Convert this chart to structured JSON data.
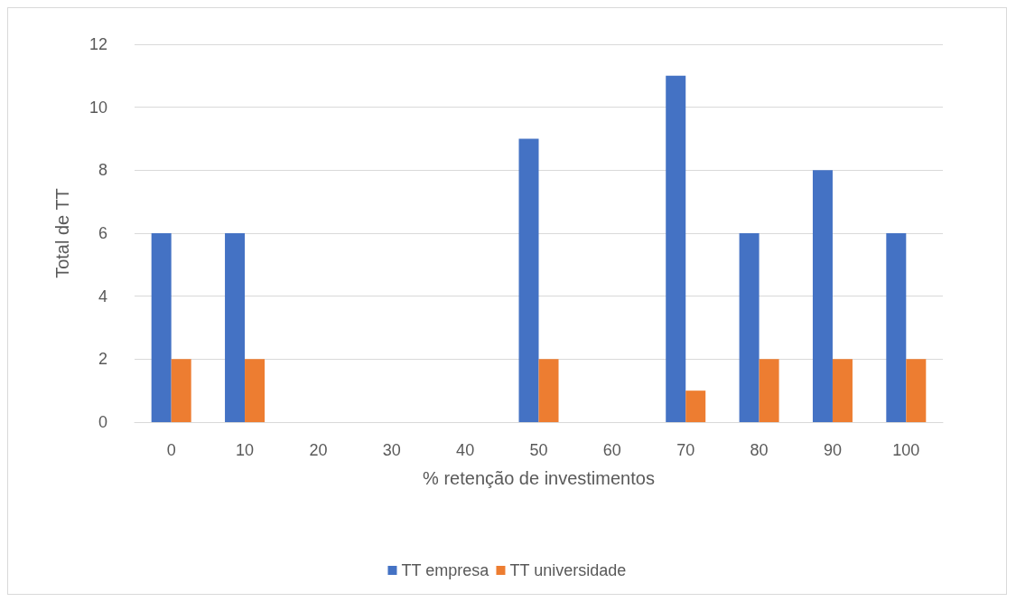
{
  "chart_data": {
    "type": "bar",
    "xlabel": "% retenção de investimentos",
    "ylabel": "Total de TT",
    "categories": [
      "0",
      "10",
      "20",
      "30",
      "40",
      "50",
      "60",
      "70",
      "80",
      "90",
      "100"
    ],
    "series": [
      {
        "name": "TT empresa",
        "color": "#4472c4",
        "values": [
          6,
          6,
          0,
          0,
          0,
          9,
          0,
          11,
          6,
          8,
          6
        ]
      },
      {
        "name": "TT universidade",
        "color": "#ed7d31",
        "values": [
          2,
          2,
          0,
          0,
          0,
          2,
          0,
          1,
          2,
          2,
          2
        ]
      }
    ],
    "ylim": [
      0,
      12
    ],
    "yticks": [
      0,
      2,
      4,
      6,
      8,
      10,
      12
    ],
    "grid": "y",
    "legend": "bottom"
  }
}
